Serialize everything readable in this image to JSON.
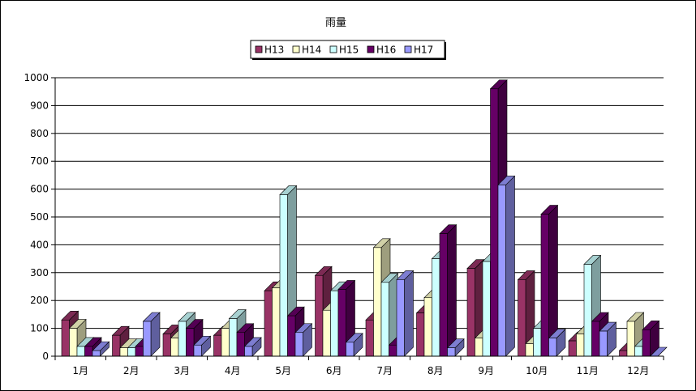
{
  "chart_data": {
    "type": "bar",
    "title": "雨量",
    "xlabel": "",
    "ylabel": "",
    "ylim": [
      0,
      1000
    ],
    "yticks": [
      0,
      100,
      200,
      300,
      400,
      500,
      600,
      700,
      800,
      900,
      1000
    ],
    "grid": true,
    "legend_position": "top",
    "categories": [
      "1月",
      "2月",
      "3月",
      "4月",
      "5月",
      "6月",
      "7月",
      "8月",
      "9月",
      "10月",
      "11月",
      "12月"
    ],
    "series": [
      {
        "name": "H13",
        "color": "#993366",
        "values": [
          130,
          75,
          80,
          75,
          235,
          290,
          130,
          155,
          315,
          275,
          55,
          20
        ]
      },
      {
        "name": "H14",
        "color": "#FFFFCC",
        "values": [
          100,
          30,
          65,
          100,
          245,
          165,
          390,
          210,
          65,
          45,
          80,
          125
        ]
      },
      {
        "name": "H15",
        "color": "#CCFFFF",
        "values": [
          35,
          30,
          125,
          135,
          580,
          235,
          265,
          350,
          340,
          100,
          330,
          35
        ]
      },
      {
        "name": "H16",
        "color": "#660066",
        "values": [
          35,
          35,
          100,
          85,
          145,
          240,
          40,
          440,
          960,
          510,
          125,
          95
        ]
      },
      {
        "name": "H17",
        "color": "#9999FF",
        "values": [
          20,
          125,
          40,
          35,
          85,
          50,
          275,
          30,
          615,
          65,
          90,
          0
        ]
      }
    ]
  }
}
